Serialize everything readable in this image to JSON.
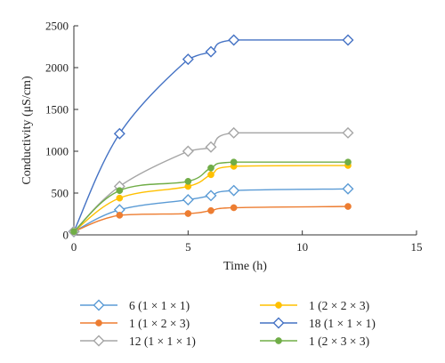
{
  "chart_data": {
    "type": "line",
    "title": "",
    "xlabel": "Time (h)",
    "ylabel": "Conductivity (μS/cm)",
    "xlim": [
      0,
      15
    ],
    "ylim": [
      0,
      2500
    ],
    "xticks": [
      0,
      5,
      10,
      15
    ],
    "yticks": [
      0,
      500,
      1000,
      1500,
      2000,
      2500
    ],
    "grid": false,
    "legend_position": "bottom",
    "series": [
      {
        "name": "6 (1 × 1 × 1)",
        "color": "#5b9bd5",
        "marker": "diamond-open",
        "x": [
          0,
          2,
          5,
          6,
          7,
          12
        ],
        "y": [
          40,
          300,
          420,
          470,
          530,
          550
        ]
      },
      {
        "name": "1 (2 × 2 × 3)",
        "color": "#ffc000",
        "marker": "circle",
        "x": [
          0,
          2,
          5,
          6,
          7,
          12
        ],
        "y": [
          40,
          440,
          580,
          720,
          820,
          830
        ]
      },
      {
        "name": "1 (1 × 2 × 3)",
        "color": "#ed7d31",
        "marker": "circle",
        "x": [
          0,
          2,
          5,
          6,
          7,
          12
        ],
        "y": [
          40,
          235,
          255,
          290,
          325,
          340
        ]
      },
      {
        "name": "18 (1 × 1 × 1)",
        "color": "#4472c4",
        "marker": "diamond-open",
        "x": [
          0,
          2,
          5,
          6,
          7,
          12
        ],
        "y": [
          40,
          1210,
          2100,
          2190,
          2330,
          2330
        ]
      },
      {
        "name": "12 (1 × 1 × 1)",
        "color": "#a5a5a5",
        "marker": "diamond-open",
        "x": [
          0,
          2,
          5,
          6,
          7,
          12
        ],
        "y": [
          40,
          580,
          1000,
          1050,
          1220,
          1220
        ]
      },
      {
        "name": "1 (2 × 3 × 3)",
        "color": "#70ad47",
        "marker": "circle",
        "x": [
          0,
          2,
          5,
          6,
          7,
          12
        ],
        "y": [
          40,
          530,
          640,
          800,
          870,
          870
        ]
      }
    ]
  }
}
